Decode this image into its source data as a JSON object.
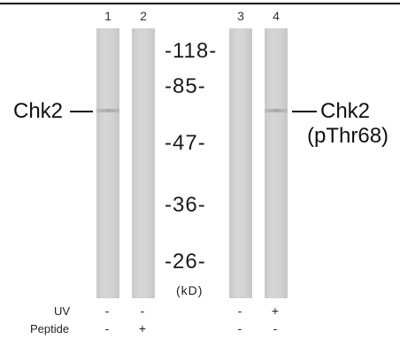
{
  "lanes": [
    "1",
    "2",
    "3",
    "4"
  ],
  "markers": [
    "-118-",
    "-85-",
    "-47-",
    "-36-",
    "-26-"
  ],
  "unit": "(kD)",
  "left_label": "Chk2",
  "right_label_line1": "Chk2",
  "right_label_line2": "(pThr68)",
  "conditions": [
    {
      "label": "UV",
      "values": [
        "-",
        "-",
        "-",
        "+"
      ]
    },
    {
      "label": "Peptide",
      "values": [
        "-",
        "+",
        "-",
        "-"
      ]
    }
  ]
}
